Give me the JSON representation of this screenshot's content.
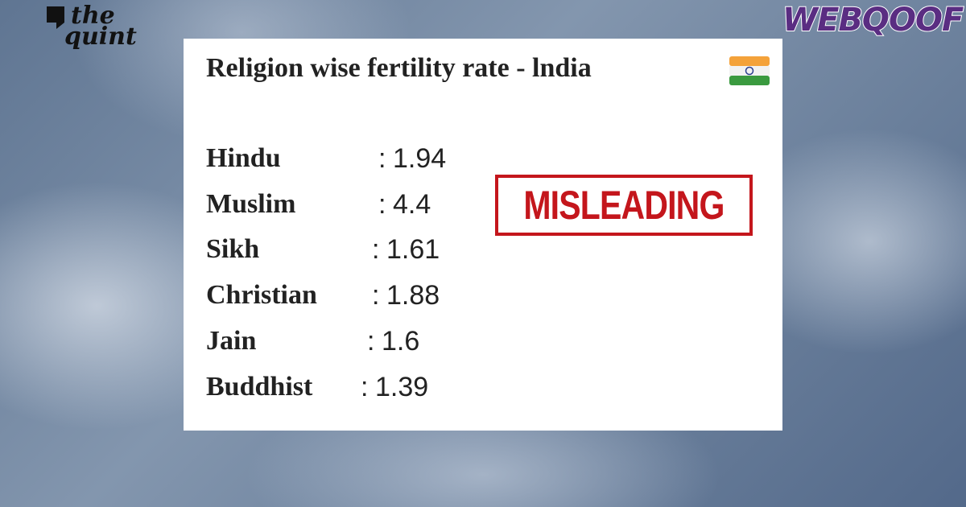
{
  "branding": {
    "logo_top": "the",
    "logo_bottom": "quint",
    "badge": "WEBQOOF"
  },
  "card": {
    "title": "Religion wise fertility rate - lndia",
    "rows": [
      {
        "label": "Hindu",
        "separator": ":",
        "value": 1.94
      },
      {
        "label": "Muslim",
        "separator": ":",
        "value": 4.4
      },
      {
        "label": "Sikh",
        "separator": ":",
        "value": 1.61
      },
      {
        "label": "Christian",
        "separator": ":",
        "value": 1.88
      },
      {
        "label": "Jain",
        "separator": ":",
        "value": 1.6
      },
      {
        "label": "Buddhist",
        "separator": ":",
        "value": 1.39
      }
    ]
  },
  "stamp": "MISLEADING"
}
